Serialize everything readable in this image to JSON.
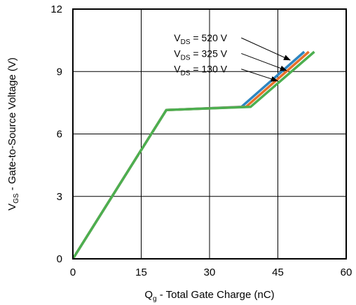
{
  "chart_data": {
    "type": "line",
    "title": "",
    "xlabel": {
      "main": "Q",
      "sub": "g",
      "rest": " - Total Gate Charge (nC)"
    },
    "ylabel": {
      "main": "V",
      "sub": "GS",
      "rest": " - Gate-to-Source Voltage (V)"
    },
    "xlim": [
      0,
      60
    ],
    "ylim": [
      0,
      12
    ],
    "xticks": [
      0,
      15,
      30,
      45,
      60
    ],
    "yticks": [
      0,
      3,
      6,
      9,
      12
    ],
    "grid": true,
    "legend": "none",
    "series": [
      {
        "color": "#2e86c1",
        "label": {
          "main": "V",
          "sub": "DS",
          "rest": " = 520 V"
        },
        "x": [
          0,
          20.5,
          37,
          50.8
        ],
        "y": [
          0,
          7.15,
          7.3,
          9.95
        ]
      },
      {
        "color": "#e8702a",
        "label": {
          "main": "V",
          "sub": "DS",
          "rest": " = 325 V"
        },
        "x": [
          0,
          20.5,
          38,
          51.8
        ],
        "y": [
          0,
          7.15,
          7.3,
          9.95
        ]
      },
      {
        "color": "#4caf50",
        "label": {
          "main": "V",
          "sub": "DS",
          "rest": " = 130 V"
        },
        "x": [
          0,
          20.5,
          39,
          53
        ],
        "y": [
          0,
          7.15,
          7.3,
          9.95
        ]
      }
    ],
    "annotations": [
      {
        "series": 0,
        "text_at": [
          22.2,
          10.45
        ],
        "arrow_to": [
          47.7,
          9.55
        ]
      },
      {
        "series": 1,
        "text_at": [
          22.2,
          9.7
        ],
        "arrow_to": [
          46.9,
          9.05
        ]
      },
      {
        "series": 2,
        "text_at": [
          22.2,
          8.95
        ],
        "arrow_to": [
          44.9,
          8.55
        ]
      }
    ]
  }
}
